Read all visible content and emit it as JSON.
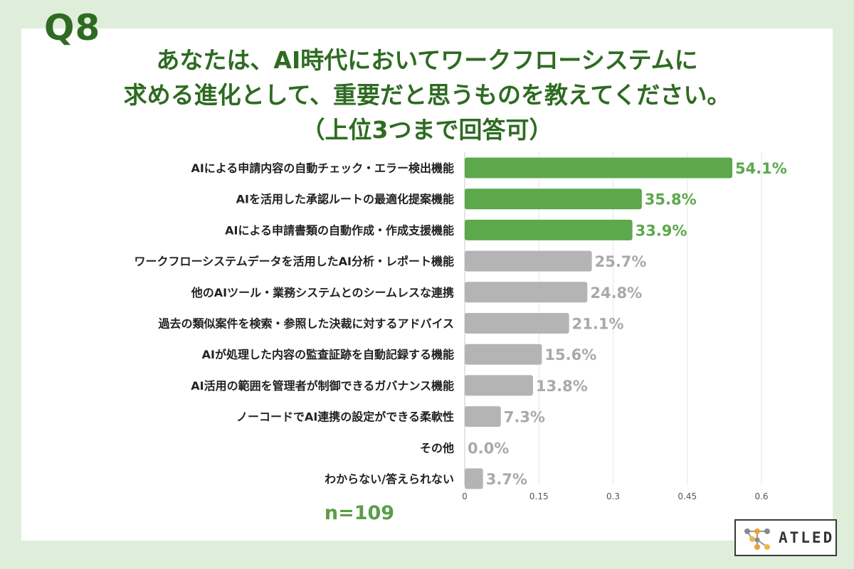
{
  "question_number": "Q8",
  "title_lines": [
    "あなたは、AI時代においてワークフローシステムに",
    "求める進化として、重要だと思うものを教えてください。",
    "（上位3つまで回答可）"
  ],
  "sample_size": "n=109",
  "logo_text": "ATLED",
  "colors": {
    "highlight": "#5ca84a",
    "highlight_label": "#5ca84a",
    "normal": "#b4b4b4",
    "normal_label": "#a9a9a9",
    "title": "#2e6b22"
  },
  "chart_data": {
    "type": "bar",
    "orientation": "horizontal",
    "categories": [
      "AIによる申請内容の自動チェック・エラー検出機能",
      "AIを活用した承認ルートの最適化提案機能",
      "AIによる申請書類の自動作成・作成支援機能",
      "ワークフローシステムデータを活用したAI分析・レポート機能",
      "他のAIツール・業務システムとのシームレスな連携",
      "過去の類似案件を検索・参照した決裁に対するアドバイス",
      "AIが処理した内容の監査証跡を自動記録する機能",
      "AI活用の範囲を管理者が制御できるガバナンス機能",
      "ノーコードでAI連携の設定ができる柔軟性",
      "その他",
      "わからない/答えられない"
    ],
    "values": [
      0.541,
      0.358,
      0.339,
      0.257,
      0.248,
      0.211,
      0.156,
      0.138,
      0.073,
      0.0,
      0.037
    ],
    "value_labels": [
      "54.1%",
      "35.8%",
      "33.9%",
      "25.7%",
      "24.8%",
      "21.1%",
      "15.6%",
      "13.8%",
      "7.3%",
      "0.0%",
      "3.7%"
    ],
    "highlighted": [
      true,
      true,
      true,
      false,
      false,
      false,
      false,
      false,
      false,
      false,
      false
    ],
    "xlim": [
      0,
      0.6
    ],
    "xticks": [
      0,
      0.15,
      0.3,
      0.45,
      0.6
    ],
    "xtick_labels": [
      "0",
      "0.15",
      "0.3",
      "0.45",
      "0.6"
    ],
    "grid": true
  }
}
